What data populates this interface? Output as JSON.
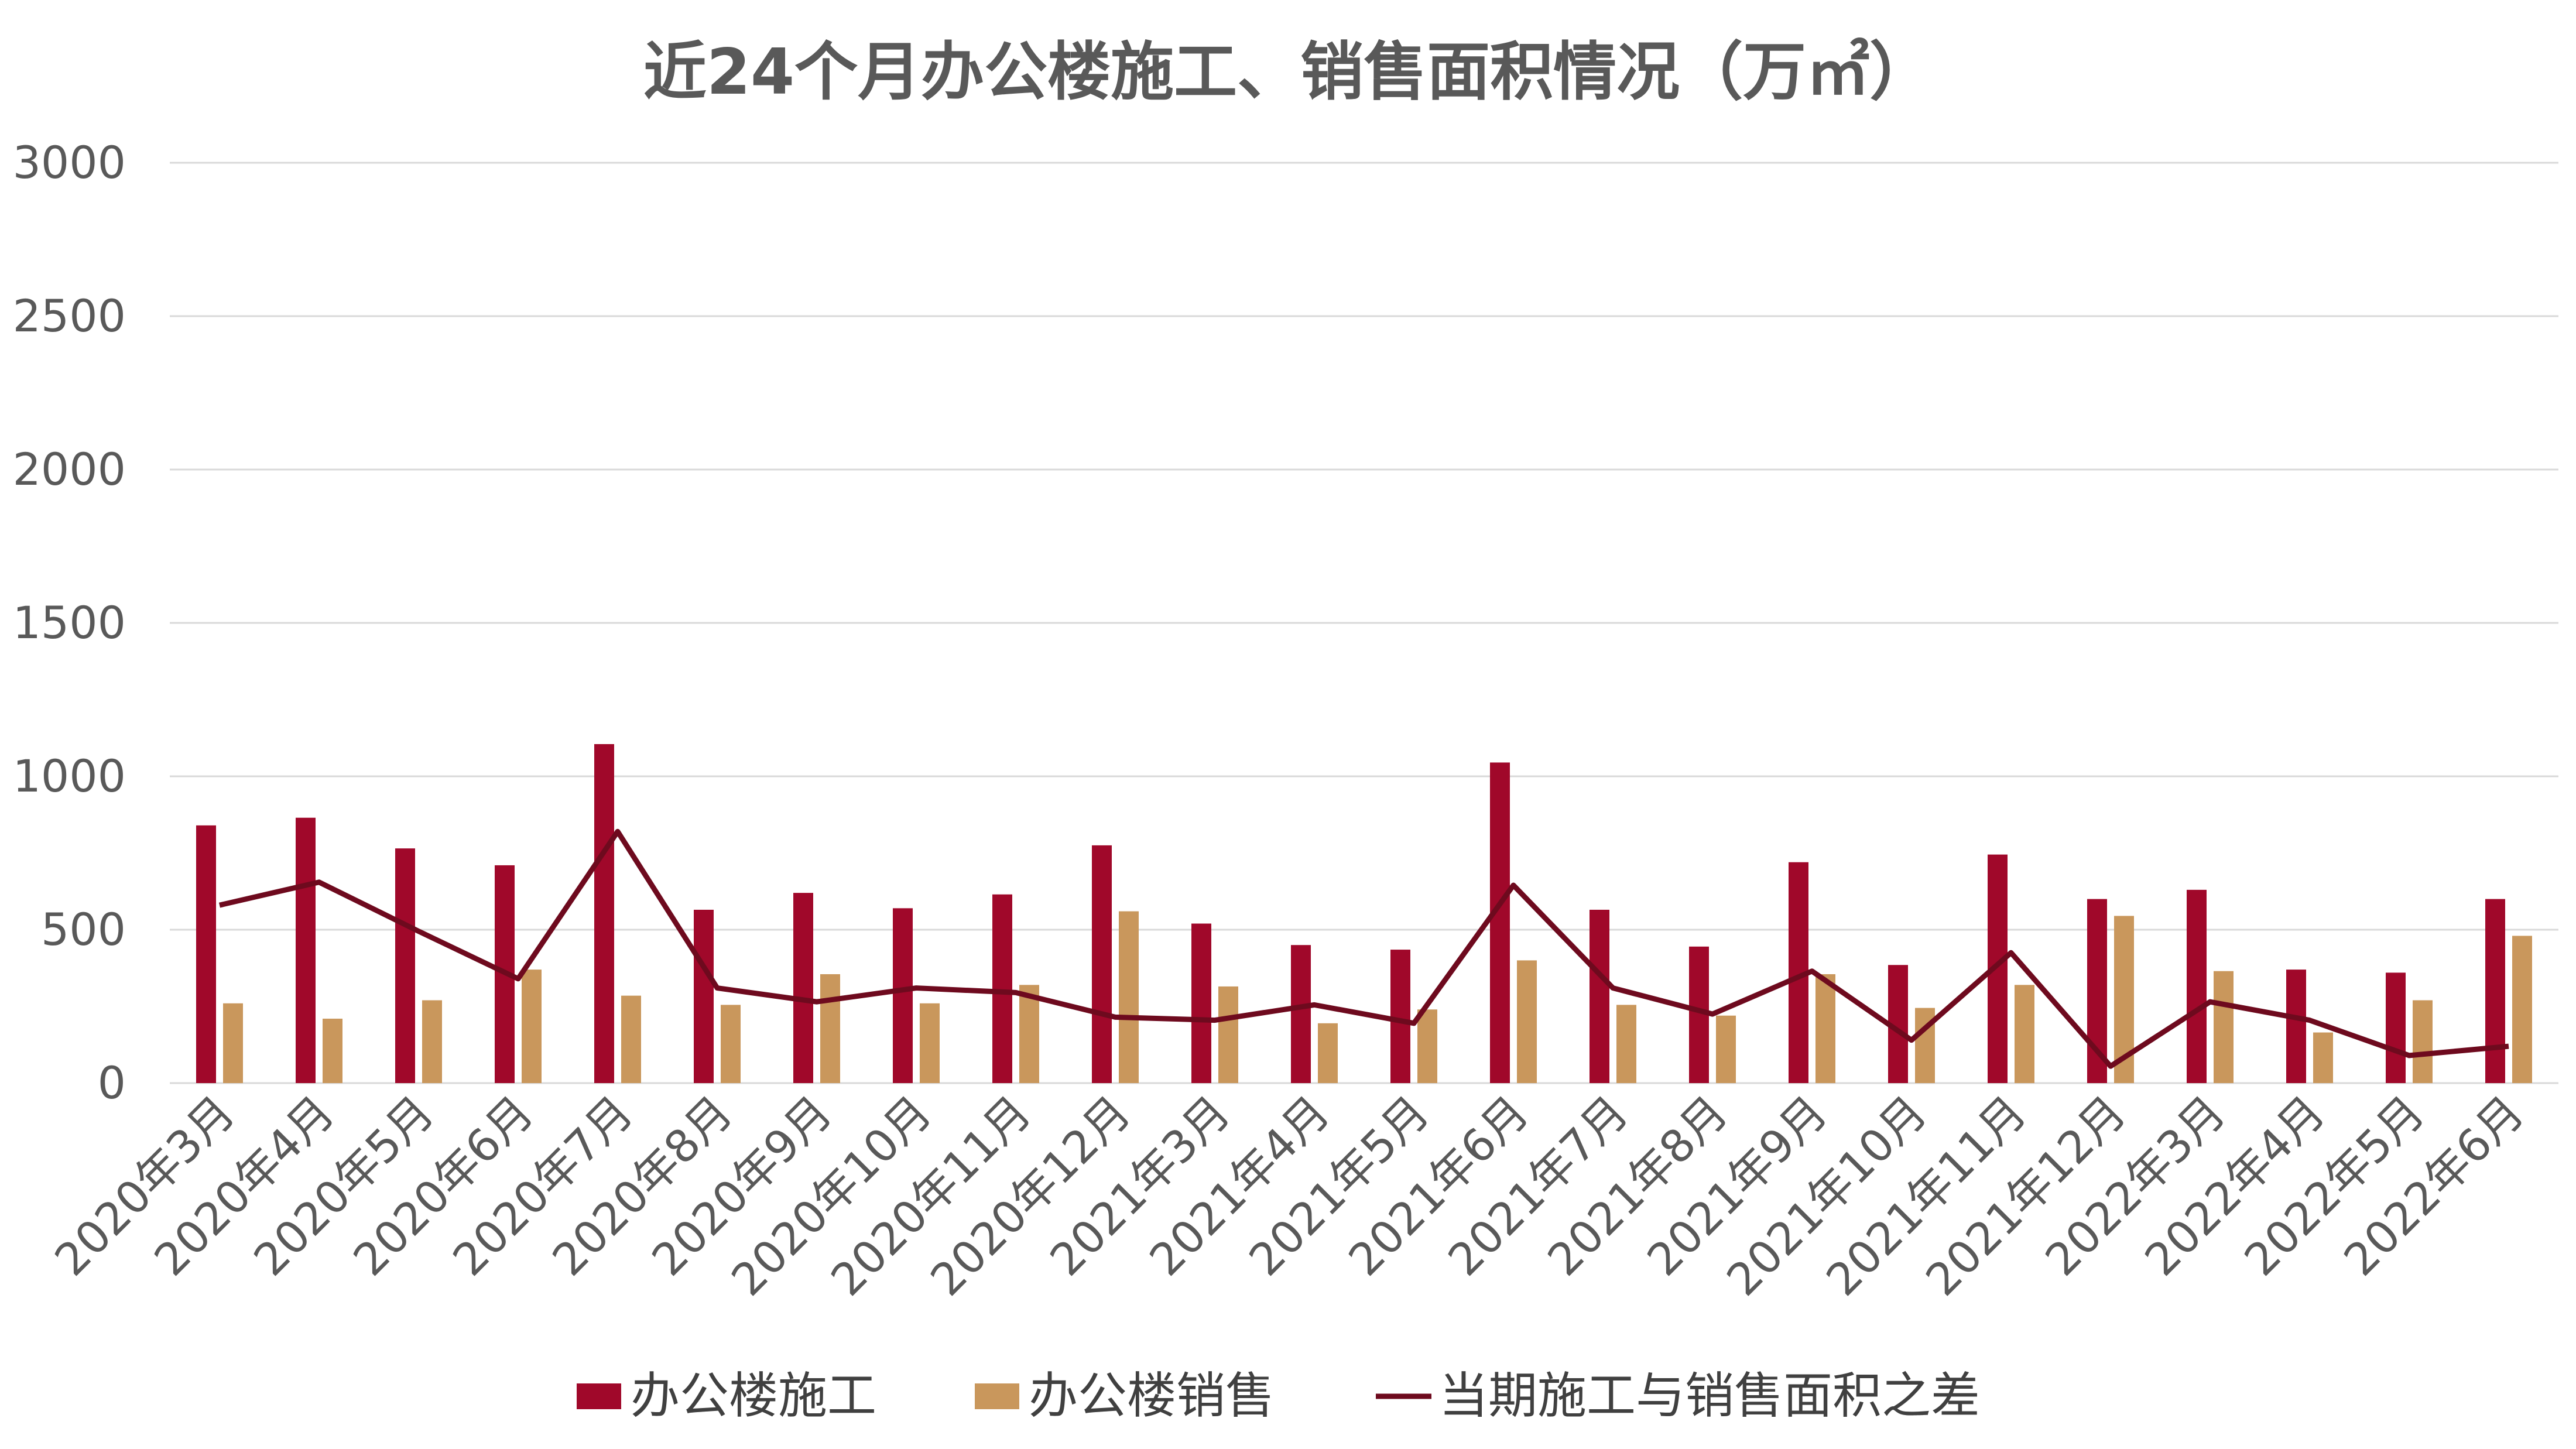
{
  "chart_data": {
    "type": "bar",
    "title": "近24个月办公楼施工、销售面积情况（万㎡）",
    "xlabel": "",
    "ylabel": "",
    "ylim": [
      0,
      3000
    ],
    "yticks": [
      0,
      500,
      1000,
      1500,
      2000,
      2500,
      3000
    ],
    "grid": true,
    "legend_position": "bottom",
    "categories": [
      "2020年3月",
      "2020年4月",
      "2020年5月",
      "2020年6月",
      "2020年7月",
      "2020年8月",
      "2020年9月",
      "2020年10月",
      "2020年11月",
      "2020年12月",
      "2021年3月",
      "2021年4月",
      "2021年5月",
      "2021年6月",
      "2021年7月",
      "2021年8月",
      "2021年9月",
      "2021年10月",
      "2021年11月",
      "2021年12月",
      "2022年3月",
      "2022年4月",
      "2022年5月",
      "2022年6月"
    ],
    "series": [
      {
        "name": "办公楼施工",
        "kind": "bar",
        "color": "#A0082A",
        "values": [
          840,
          865,
          765,
          710,
          1105,
          565,
          620,
          570,
          615,
          775,
          520,
          450,
          435,
          1045,
          565,
          445,
          720,
          385,
          745,
          600,
          630,
          370,
          360,
          600
        ]
      },
      {
        "name": "办公楼销售",
        "kind": "bar",
        "color": "#C9975C",
        "values": [
          260,
          210,
          270,
          370,
          285,
          255,
          355,
          260,
          320,
          560,
          315,
          195,
          240,
          400,
          255,
          220,
          355,
          245,
          320,
          545,
          365,
          165,
          270,
          480
        ]
      },
      {
        "name": "当期施工与销售面积之差",
        "kind": "line",
        "color": "#6E0A1E",
        "values": [
          580,
          655,
          495,
          340,
          820,
          310,
          265,
          310,
          295,
          215,
          205,
          255,
          195,
          645,
          310,
          225,
          365,
          140,
          425,
          55,
          265,
          205,
          90,
          120
        ]
      }
    ]
  }
}
